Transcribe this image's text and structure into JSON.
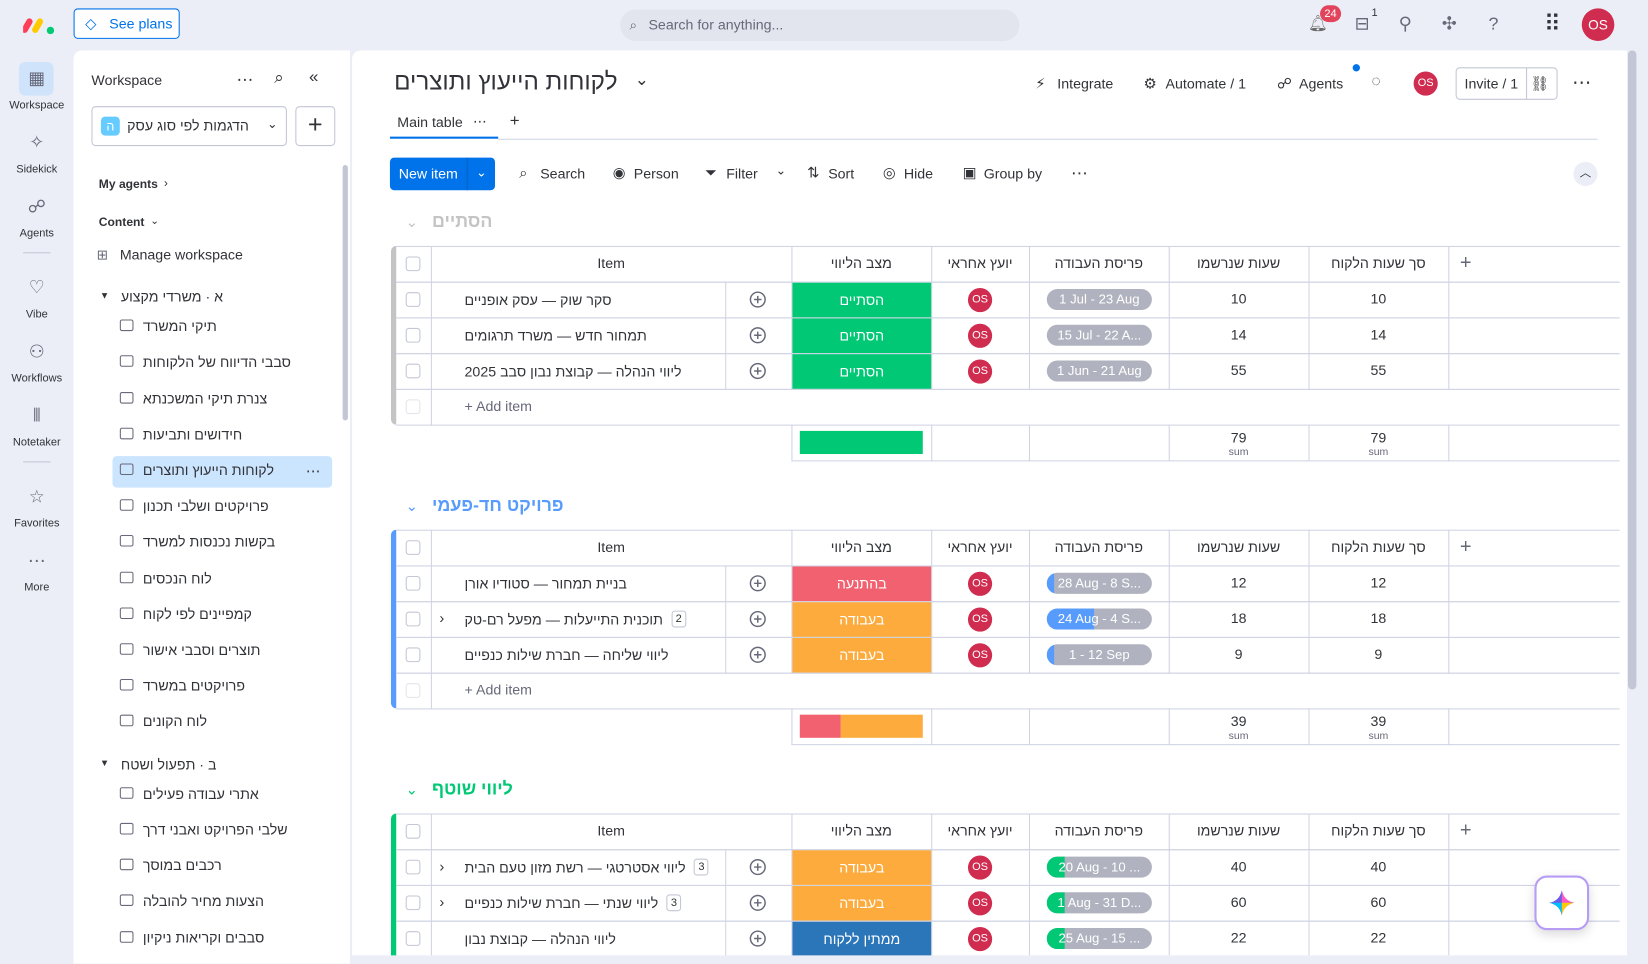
{
  "topbar": {
    "see_plans": "See plans",
    "search": "Search for anything...",
    "notifications": "24",
    "inbox": "1",
    "avatar": "OS"
  },
  "left_nav": [
    "Workspace",
    "Sidekick",
    "Agents",
    "Vibe",
    "Workflows",
    "Notetaker",
    "Favorites",
    "More"
  ],
  "sidebar": {
    "title": "Workspace",
    "workspace_icon": "ה",
    "workspace_select": "הדגמות לפי סוג עסק",
    "my_agents": "My agents",
    "content": "Content",
    "manage": "Manage workspace",
    "folders": [
      {
        "name": "א · משרדי מקצוע",
        "items": [
          "תיקי המשרד",
          "סבבי הדיווח של הלקוחות",
          "צנרת תיקי המשכנתא",
          "חידושים ותביעות",
          "לקוחות הייעוץ ותוצרים",
          "פרויקטים ושלבי תכנון",
          "בקשות נכנסות למשרד",
          "לוח הנכסים",
          "קמפיינים לפי לקוח",
          "תוצרים וסבבי אישור",
          "פרויקטים במשרד",
          "לוח הקונים"
        ]
      },
      {
        "name": "ב · תפעול ושטח",
        "items": [
          "אתרי עבודה פעילים",
          "שלבי הפרויקט ואבני דרך",
          "רכבים במוסך",
          "הצעות מחיר להובלה",
          "סבבים וקריאות ניקיון"
        ]
      }
    ]
  },
  "board": {
    "title": "לקוחות הייעוץ ותוצרים",
    "tab": "Main table",
    "actions": [
      "Integrate",
      "Automate / 1",
      "Agents"
    ],
    "avatar": "OS",
    "invite": "Invite / 1",
    "new_item": "New item",
    "toolbar": [
      "Search",
      "Person",
      "Filter",
      "Sort",
      "Hide",
      "Group by"
    ],
    "columns": [
      "Item",
      "מצב הליווי",
      "יועץ אחראי",
      "פריסת העבודה",
      "שעות שנרשמו",
      "סך שעות הלקוח"
    ],
    "add_item": "+ Add item",
    "sum_label": "sum",
    "groups": [
      {
        "name": "הסתיים",
        "color": "#c4c4c4",
        "sums": [
          "79",
          "79"
        ],
        "rows": [
          {
            "item": "סקר שוק — עסק אופניים",
            "status": "הסתיים",
            "status_color": "#00c875",
            "owner": "OS",
            "timeline": "1 Jul - 23 Aug",
            "hours": "10",
            "total": "10"
          },
          {
            "item": "תמחור חדש — משרד תרגומים",
            "status": "הסתיים",
            "status_color": "#00c875",
            "owner": "OS",
            "timeline": "15 Jul - 22 A...",
            "hours": "14",
            "total": "14"
          },
          {
            "item": "ליווי הנהלה — קבוצת נבון סבב 2025",
            "status": "הסתיים",
            "status_color": "#00c875",
            "owner": "OS",
            "timeline": "1 Jun - 21 Aug",
            "hours": "55",
            "total": "55"
          }
        ]
      },
      {
        "name": "פרויקט חד-פעמי",
        "color": "#579bfc",
        "sums": [
          "39",
          "39"
        ],
        "rows": [
          {
            "item": "בניית תמחור — סטודיו אורן",
            "status": "בהתנעה",
            "status_color": "#f2616f",
            "owner": "OS",
            "timeline": "28 Aug - 8 S...",
            "hours": "12",
            "total": "12"
          },
          {
            "item": "תוכנית התייעלות — מפעל רם-טק",
            "subitems": "2",
            "status": "בעבודה",
            "status_color": "#fdab3d",
            "owner": "OS",
            "timeline": "24 Aug - 4 S...",
            "hours": "18",
            "total": "18"
          },
          {
            "item": "ליווי שליחה — חברת שילות כנפיים",
            "status": "בעבודה",
            "status_color": "#fdab3d",
            "owner": "OS",
            "timeline": "1 - 12 Sep",
            "hours": "9",
            "total": "9"
          }
        ]
      },
      {
        "name": "ליווי שוטף",
        "color": "#00c875",
        "rows": [
          {
            "item": "ליווי אסטרטגי — רשת מזון טעם הבית",
            "subitems": "3",
            "status": "בעבודה",
            "status_color": "#fdab3d",
            "owner": "OS",
            "timeline": "20 Aug - 10 ...",
            "hours": "40",
            "total": "40"
          },
          {
            "item": "ליווי שנתי — חברת שילות כנפיים",
            "subitems": "3",
            "status": "בעבודה",
            "status_color": "#fdab3d",
            "owner": "OS",
            "timeline": "1 Aug - 31 D...",
            "hours": "60",
            "total": "60"
          },
          {
            "item": "ליווי הנהלה — קבוצת נבון",
            "status": "ממתין ללקוח",
            "status_color": "#2b76b9",
            "owner": "OS",
            "timeline": "25 Aug - 15 ...",
            "hours": "22",
            "total": "22"
          }
        ]
      }
    ]
  }
}
